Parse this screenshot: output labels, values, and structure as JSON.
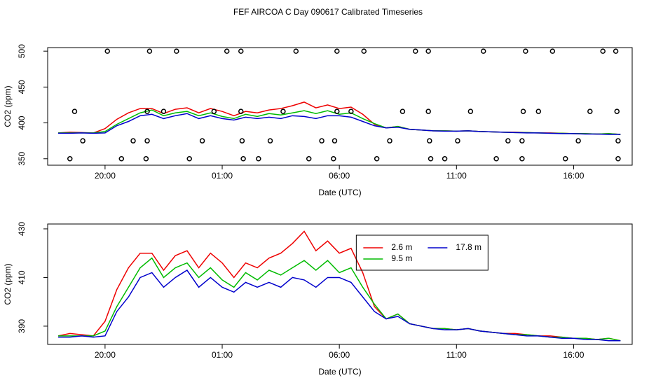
{
  "chart_data": [
    {
      "type": "line",
      "title": "FEF AIRCOA C  Day 090617  Calibrated Timeseries",
      "xlabel": "Date (UTC)",
      "ylabel": "CO2 (ppm)",
      "x": [
        18,
        18.5,
        19,
        19.5,
        20,
        20.5,
        21,
        21.5,
        22,
        22.5,
        23,
        23.5,
        24,
        24.5,
        25,
        25.5,
        26,
        26.5,
        27,
        27.5,
        28,
        28.5,
        29,
        29.5,
        30,
        30.5,
        31,
        31.5,
        32,
        32.5,
        33,
        33.5,
        34,
        34.5,
        35,
        35.5,
        36,
        36.5,
        37,
        37.5,
        38,
        38.5,
        39,
        39.5,
        40,
        40.5,
        41,
        41.5,
        42
      ],
      "series": [
        {
          "color": "#ee0000",
          "values": [
            386,
            387,
            386.5,
            386,
            392,
            405,
            414,
            420,
            420,
            413,
            419,
            421,
            414,
            420,
            416,
            410,
            416,
            414,
            418,
            420,
            424,
            429,
            421,
            425,
            420,
            422,
            412,
            398,
            393,
            395,
            391,
            390,
            389,
            389,
            388.5,
            389,
            388,
            387.5,
            387,
            387,
            386.5,
            386,
            386,
            385.5,
            385,
            385,
            384.5,
            385,
            384
          ]
        },
        {
          "color": "#00bb00",
          "values": [
            386,
            386,
            386,
            386,
            388,
            398,
            406,
            414,
            418,
            410,
            414,
            416,
            410,
            414,
            409,
            406,
            412,
            409,
            413,
            411,
            414,
            417,
            413,
            417,
            412,
            414,
            406,
            399,
            393,
            395,
            391,
            390,
            389,
            389,
            388.5,
            389,
            388,
            387.5,
            387,
            386.5,
            386.5,
            386,
            385.5,
            385.5,
            385,
            385,
            384.5,
            385,
            384
          ]
        },
        {
          "color": "#0000cc",
          "values": [
            385.5,
            385.5,
            386,
            385.5,
            386,
            396,
            402,
            410,
            412,
            406,
            410,
            413,
            406,
            410,
            406,
            404,
            408,
            406,
            408,
            406,
            410,
            409,
            406,
            410,
            410,
            408,
            402,
            396,
            393,
            394,
            391,
            390,
            389,
            388.5,
            388.5,
            389,
            388,
            387.5,
            387,
            386.5,
            386,
            386,
            385.5,
            385,
            385,
            384.5,
            384.5,
            384,
            384
          ]
        }
      ],
      "flags": {
        "x": [
          20.1,
          21.9,
          23.05,
          25.2,
          25.8,
          28.15,
          29.9,
          31.05,
          33.25,
          33.8,
          36.15,
          37.95,
          39.1,
          41.25,
          41.8,
          18.7,
          21.8,
          22.5,
          24.65,
          25.8,
          27.6,
          29.9,
          30.5,
          32.7,
          33.8,
          35.6,
          37.85,
          38.5,
          40.7,
          41.85,
          19.05,
          21.2,
          21.8,
          24.15,
          25.85,
          27.05,
          29.25,
          29.8,
          32.15,
          33.85,
          35.05,
          37.2,
          37.8,
          40.2,
          41.9,
          18.5,
          20.7,
          21.75,
          23.6,
          25.9,
          26.55,
          28.7,
          29.75,
          31.6,
          33.9,
          34.5,
          36.7,
          37.8,
          39.65,
          41.9
        ],
        "values": [
          500,
          500,
          500,
          500,
          500,
          500,
          500,
          500,
          500,
          500,
          500,
          500,
          500,
          500,
          500,
          416,
          416,
          416,
          416,
          416,
          416,
          416,
          416,
          416,
          416,
          416,
          416,
          416,
          416,
          416,
          375,
          375,
          375,
          375,
          375,
          375,
          375,
          375,
          375,
          375,
          375,
          375,
          375,
          375,
          375,
          350,
          350,
          350,
          350,
          350,
          350,
          350,
          350,
          350,
          350,
          350,
          350,
          350,
          350,
          350
        ]
      },
      "xlim": [
        17.55,
        42.5
      ],
      "xticks": [
        {
          "value": 20,
          "label": "20:00"
        },
        {
          "value": 25,
          "label": "01:00"
        },
        {
          "value": 30,
          "label": "06:00"
        },
        {
          "value": 35,
          "label": "11:00"
        },
        {
          "value": 40,
          "label": "16:00"
        }
      ],
      "ylim": [
        341,
        505
      ],
      "yticks": [
        350,
        400,
        450,
        500
      ]
    },
    {
      "type": "line",
      "xlabel": "Date (UTC)",
      "ylabel": "CO2 (ppm)",
      "x": [
        18,
        18.5,
        19,
        19.5,
        20,
        20.5,
        21,
        21.5,
        22,
        22.5,
        23,
        23.5,
        24,
        24.5,
        25,
        25.5,
        26,
        26.5,
        27,
        27.5,
        28,
        28.5,
        29,
        29.5,
        30,
        30.5,
        31,
        31.5,
        32,
        32.5,
        33,
        33.5,
        34,
        34.5,
        35,
        35.5,
        36,
        36.5,
        37,
        37.5,
        38,
        38.5,
        39,
        39.5,
        40,
        40.5,
        41,
        41.5,
        42
      ],
      "series": [
        {
          "name": "2.6 m",
          "color": "#ee0000",
          "values": [
            386,
            387,
            386.5,
            386,
            392,
            405,
            414,
            420,
            420,
            413,
            419,
            421,
            414,
            420,
            416,
            410,
            416,
            414,
            418,
            420,
            424,
            429,
            421,
            425,
            420,
            422,
            412,
            398,
            393,
            395,
            391,
            390,
            389,
            389,
            388.5,
            389,
            388,
            387.5,
            387,
            387,
            386.5,
            386,
            386,
            385.5,
            385,
            385,
            384.5,
            385,
            384
          ]
        },
        {
          "name": "9.5 m",
          "color": "#00bb00",
          "values": [
            386,
            386,
            386,
            386,
            388,
            398,
            406,
            414,
            418,
            410,
            414,
            416,
            410,
            414,
            409,
            406,
            412,
            409,
            413,
            411,
            414,
            417,
            413,
            417,
            412,
            414,
            406,
            399,
            393,
            395,
            391,
            390,
            389,
            389,
            388.5,
            389,
            388,
            387.5,
            387,
            386.5,
            386.5,
            386,
            385.5,
            385.5,
            385,
            385,
            384.5,
            385,
            384
          ]
        },
        {
          "name": "17.8 m",
          "color": "#0000cc",
          "values": [
            385.5,
            385.5,
            386,
            385.5,
            386,
            396,
            402,
            410,
            412,
            406,
            410,
            413,
            406,
            410,
            406,
            404,
            408,
            406,
            408,
            406,
            410,
            409,
            406,
            410,
            410,
            408,
            402,
            396,
            393,
            394,
            391,
            390,
            389,
            388.5,
            388.5,
            389,
            388,
            387.5,
            387,
            386.5,
            386,
            386,
            385.5,
            385,
            385,
            384.5,
            384.5,
            384,
            384
          ]
        }
      ],
      "xlim": [
        17.55,
        42.5
      ],
      "xticks": [
        {
          "value": 20,
          "label": "20:00"
        },
        {
          "value": 25,
          "label": "01:00"
        },
        {
          "value": 30,
          "label": "06:00"
        },
        {
          "value": 35,
          "label": "11:00"
        },
        {
          "value": 40,
          "label": "16:00"
        }
      ],
      "ylim": [
        382.5,
        432
      ],
      "yticks": [
        390,
        410,
        430
      ],
      "legend": "top-right"
    }
  ]
}
